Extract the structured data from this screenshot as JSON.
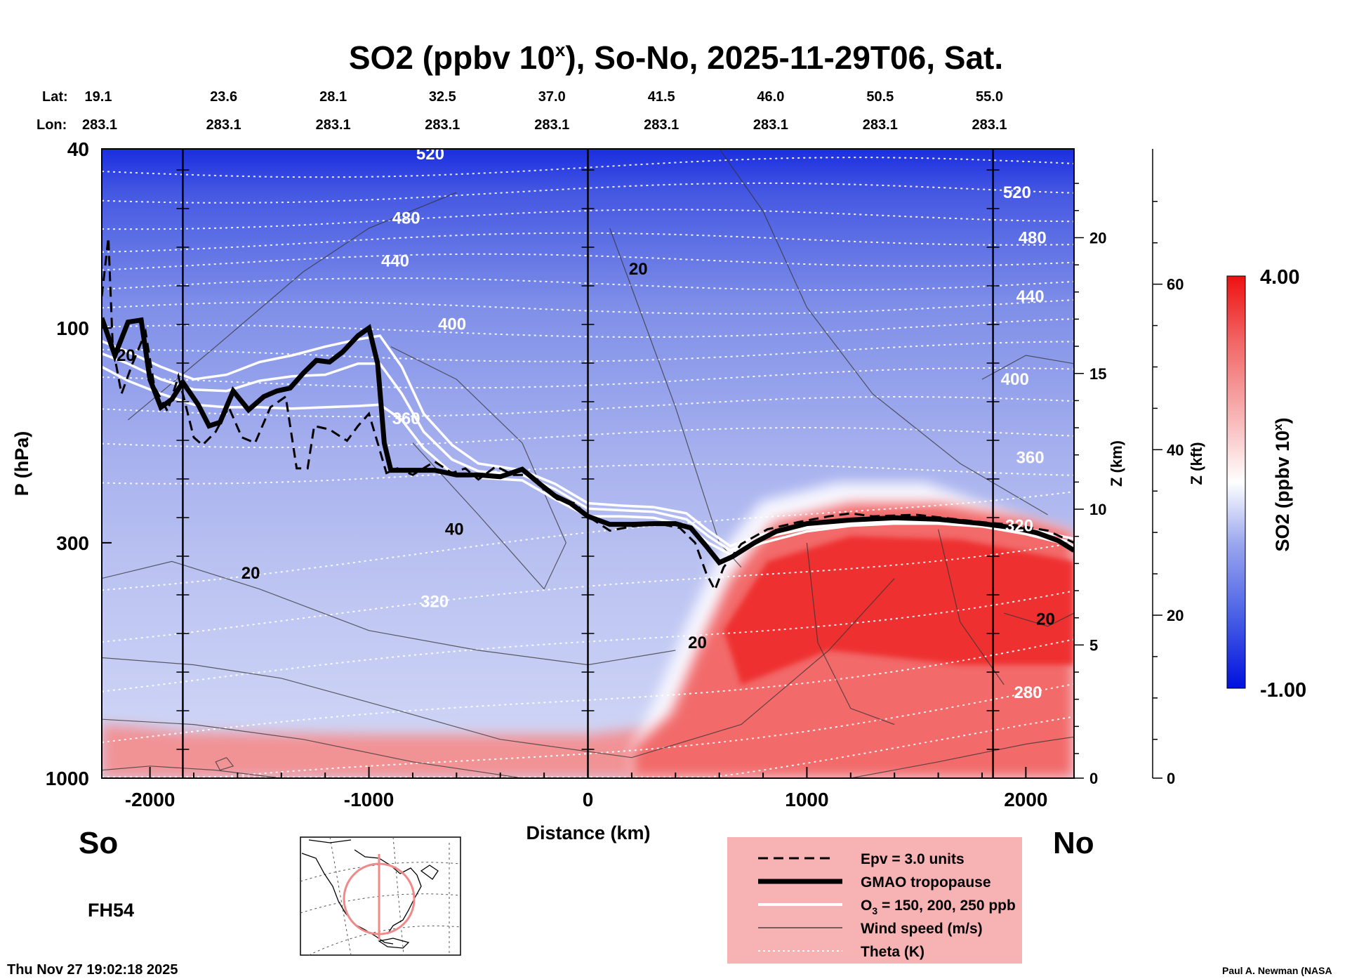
{
  "chart_data": {
    "type": "heatmap",
    "title_main": "SO2 (ppbv 10",
    "title_sup": "x",
    "title_rest": "), So-No, 2025-11-29T06, Sat.",
    "xlabel": "Distance (km)",
    "ylabel": "P (hPa)",
    "xlim": [
      -2220,
      2220
    ],
    "ylim": [
      1000,
      40
    ],
    "y_scale": "log",
    "grid": false,
    "x_ticks": [
      -2000,
      -1000,
      0,
      1000,
      2000
    ],
    "x_tick_labels": [
      "-2000",
      "-1000",
      "0",
      "1000",
      "2000"
    ],
    "y_ticks": [
      40,
      100,
      300,
      1000
    ],
    "y_tick_labels": [
      "40",
      "100",
      "300",
      "1000"
    ],
    "z_km_label": "Z (km)",
    "z_km_ticks": [
      0,
      5,
      10,
      15,
      20
    ],
    "z_km_tick_labels": [
      "0",
      "5",
      "10",
      "15",
      "20"
    ],
    "z_kft_label": "Z (kft)",
    "z_kft_ticks": [
      0,
      20,
      40,
      60
    ],
    "z_kft_tick_labels": [
      "0",
      "20",
      "40",
      "60"
    ],
    "lat_label": "Lat:",
    "lon_label": "Lon:",
    "locations": [
      {
        "x": -2220,
        "lat": "19.1",
        "lon": "283.1"
      },
      {
        "x": -1721,
        "lat": "23.6",
        "lon": "283.1"
      },
      {
        "x": -1221,
        "lat": "28.1",
        "lon": "283.1"
      },
      {
        "x": -722,
        "lat": "32.5",
        "lon": "283.1"
      },
      {
        "x": -222,
        "lat": "37.0",
        "lon": "283.1"
      },
      {
        "x": 278,
        "lat": "41.5",
        "lon": "283.1"
      },
      {
        "x": 777,
        "lat": "46.0",
        "lon": "283.1"
      },
      {
        "x": 1277,
        "lat": "50.5",
        "lon": "283.1"
      },
      {
        "x": 1776,
        "lat": "55.0",
        "lon": "283.1"
      }
    ],
    "vertical_lines_x": [
      -1850,
      0,
      1850
    ],
    "colorbar": {
      "max_label": "4.00",
      "min_label": "-1.00",
      "label_main": "SO2 (ppbv 10",
      "label_sup": "x",
      "label_rest": ")",
      "colors": [
        "#0011dd",
        "#4b62e6",
        "#9aa6ee",
        "#ffffff",
        "#f8b4b4",
        "#f26666",
        "#ee1111"
      ]
    },
    "theta_labels": [
      {
        "text": "520",
        "x": -720,
        "p": 41
      },
      {
        "text": "480",
        "x": -830,
        "p": 57
      },
      {
        "text": "440",
        "x": -880,
        "p": 71
      },
      {
        "text": "400",
        "x": -620,
        "p": 98
      },
      {
        "text": "360",
        "x": -830,
        "p": 159
      },
      {
        "text": "320",
        "x": -700,
        "p": 405
      },
      {
        "text": "520",
        "x": 1960,
        "p": 50
      },
      {
        "text": "480",
        "x": 2030,
        "p": 63
      },
      {
        "text": "440",
        "x": 2020,
        "p": 85
      },
      {
        "text": "400",
        "x": 1950,
        "p": 130
      },
      {
        "text": "360",
        "x": 2020,
        "p": 194
      },
      {
        "text": "320",
        "x": 1970,
        "p": 275
      },
      {
        "text": "280",
        "x": 2010,
        "p": 645
      }
    ],
    "wind_labels": [
      {
        "text": "20",
        "x": 230,
        "p": 74
      },
      {
        "text": "40",
        "x": -610,
        "p": 280
      },
      {
        "text": "20",
        "x": -1540,
        "p": 350
      },
      {
        "text": "20",
        "x": -2110,
        "p": 115
      },
      {
        "text": "20",
        "x": 500,
        "p": 500
      },
      {
        "text": "20",
        "x": 2090,
        "p": 443
      }
    ],
    "tropopause_series": [
      {
        "x": -2220,
        "p": 95
      },
      {
        "x": -2160,
        "p": 115
      },
      {
        "x": -2100,
        "p": 97
      },
      {
        "x": -2040,
        "p": 96
      },
      {
        "x": -2000,
        "p": 130
      },
      {
        "x": -1950,
        "p": 150
      },
      {
        "x": -1900,
        "p": 144
      },
      {
        "x": -1850,
        "p": 132
      },
      {
        "x": -1780,
        "p": 148
      },
      {
        "x": -1730,
        "p": 165
      },
      {
        "x": -1680,
        "p": 162
      },
      {
        "x": -1620,
        "p": 138
      },
      {
        "x": -1550,
        "p": 152
      },
      {
        "x": -1480,
        "p": 142
      },
      {
        "x": -1420,
        "p": 138
      },
      {
        "x": -1360,
        "p": 136
      },
      {
        "x": -1300,
        "p": 126
      },
      {
        "x": -1240,
        "p": 118
      },
      {
        "x": -1180,
        "p": 119
      },
      {
        "x": -1120,
        "p": 113
      },
      {
        "x": -1050,
        "p": 104
      },
      {
        "x": -1000,
        "p": 100
      },
      {
        "x": -960,
        "p": 120
      },
      {
        "x": -930,
        "p": 180
      },
      {
        "x": -900,
        "p": 207
      },
      {
        "x": -800,
        "p": 207
      },
      {
        "x": -700,
        "p": 207
      },
      {
        "x": -600,
        "p": 212
      },
      {
        "x": -500,
        "p": 212
      },
      {
        "x": -400,
        "p": 214
      },
      {
        "x": -300,
        "p": 206
      },
      {
        "x": -220,
        "p": 222
      },
      {
        "x": -150,
        "p": 236
      },
      {
        "x": -80,
        "p": 245
      },
      {
        "x": 0,
        "p": 262
      },
      {
        "x": 100,
        "p": 273
      },
      {
        "x": 200,
        "p": 273
      },
      {
        "x": 300,
        "p": 272
      },
      {
        "x": 400,
        "p": 272
      },
      {
        "x": 470,
        "p": 278
      },
      {
        "x": 540,
        "p": 305
      },
      {
        "x": 600,
        "p": 332
      },
      {
        "x": 660,
        "p": 322
      },
      {
        "x": 760,
        "p": 300
      },
      {
        "x": 860,
        "p": 283
      },
      {
        "x": 1000,
        "p": 272
      },
      {
        "x": 1200,
        "p": 267
      },
      {
        "x": 1400,
        "p": 264
      },
      {
        "x": 1600,
        "p": 266
      },
      {
        "x": 1800,
        "p": 272
      },
      {
        "x": 1950,
        "p": 278
      },
      {
        "x": 2050,
        "p": 285
      },
      {
        "x": 2150,
        "p": 297
      },
      {
        "x": 2220,
        "p": 312
      }
    ],
    "epv_series": [
      {
        "x": -2220,
        "p": 85
      },
      {
        "x": -2190,
        "p": 63
      },
      {
        "x": -2170,
        "p": 110
      },
      {
        "x": -2130,
        "p": 140
      },
      {
        "x": -2080,
        "p": 120
      },
      {
        "x": -2020,
        "p": 102
      },
      {
        "x": -1980,
        "p": 135
      },
      {
        "x": -1920,
        "p": 153
      },
      {
        "x": -1870,
        "p": 128
      },
      {
        "x": -1800,
        "p": 175
      },
      {
        "x": -1760,
        "p": 182
      },
      {
        "x": -1700,
        "p": 170
      },
      {
        "x": -1640,
        "p": 150
      },
      {
        "x": -1580,
        "p": 175
      },
      {
        "x": -1520,
        "p": 180
      },
      {
        "x": -1450,
        "p": 150
      },
      {
        "x": -1380,
        "p": 142
      },
      {
        "x": -1330,
        "p": 205
      },
      {
        "x": -1280,
        "p": 205
      },
      {
        "x": -1250,
        "p": 165
      },
      {
        "x": -1180,
        "p": 168
      },
      {
        "x": -1100,
        "p": 178
      },
      {
        "x": -1050,
        "p": 165
      },
      {
        "x": -1000,
        "p": 155
      },
      {
        "x": -960,
        "p": 180
      },
      {
        "x": -920,
        "p": 210
      },
      {
        "x": -870,
        "p": 205
      },
      {
        "x": -800,
        "p": 212
      },
      {
        "x": -700,
        "p": 198
      },
      {
        "x": -620,
        "p": 210
      },
      {
        "x": -560,
        "p": 205
      },
      {
        "x": -500,
        "p": 217
      },
      {
        "x": -420,
        "p": 203
      },
      {
        "x": -340,
        "p": 212
      },
      {
        "x": -260,
        "p": 212
      },
      {
        "x": -200,
        "p": 228
      },
      {
        "x": -140,
        "p": 240
      },
      {
        "x": -60,
        "p": 245
      },
      {
        "x": 0,
        "p": 262
      },
      {
        "x": 100,
        "p": 282
      },
      {
        "x": 200,
        "p": 276
      },
      {
        "x": 320,
        "p": 272
      },
      {
        "x": 420,
        "p": 278
      },
      {
        "x": 490,
        "p": 300
      },
      {
        "x": 540,
        "p": 350
      },
      {
        "x": 580,
        "p": 382
      },
      {
        "x": 620,
        "p": 340
      },
      {
        "x": 700,
        "p": 302
      },
      {
        "x": 820,
        "p": 280
      },
      {
        "x": 960,
        "p": 270
      },
      {
        "x": 1100,
        "p": 262
      },
      {
        "x": 1200,
        "p": 258
      },
      {
        "x": 1300,
        "p": 262
      },
      {
        "x": 1500,
        "p": 260
      },
      {
        "x": 1650,
        "p": 265
      },
      {
        "x": 1800,
        "p": 270
      },
      {
        "x": 1950,
        "p": 274
      },
      {
        "x": 2100,
        "p": 282
      },
      {
        "x": 2220,
        "p": 300
      }
    ],
    "o3_series": [
      {
        "name": "O3 150 ppb",
        "points": [
          {
            "x": -2220,
            "p": 122
          },
          {
            "x": -2100,
            "p": 131
          },
          {
            "x": -1950,
            "p": 140
          },
          {
            "x": -1800,
            "p": 148
          },
          {
            "x": -1650,
            "p": 150
          },
          {
            "x": -1500,
            "p": 150
          },
          {
            "x": -1350,
            "p": 151
          },
          {
            "x": -1200,
            "p": 150
          },
          {
            "x": -1050,
            "p": 149
          },
          {
            "x": -950,
            "p": 148
          },
          {
            "x": -850,
            "p": 160
          },
          {
            "x": -750,
            "p": 185
          },
          {
            "x": -620,
            "p": 210
          },
          {
            "x": -500,
            "p": 215
          },
          {
            "x": -300,
            "p": 218
          },
          {
            "x": -150,
            "p": 240
          },
          {
            "x": 0,
            "p": 262
          },
          {
            "x": 150,
            "p": 262
          },
          {
            "x": 300,
            "p": 264
          },
          {
            "x": 450,
            "p": 275
          },
          {
            "x": 550,
            "p": 300
          },
          {
            "x": 650,
            "p": 318
          },
          {
            "x": 800,
            "p": 300
          },
          {
            "x": 1000,
            "p": 283
          },
          {
            "x": 1200,
            "p": 275
          },
          {
            "x": 1400,
            "p": 272
          },
          {
            "x": 1600,
            "p": 272
          },
          {
            "x": 1800,
            "p": 276
          },
          {
            "x": 2000,
            "p": 287
          },
          {
            "x": 2220,
            "p": 305
          }
        ]
      },
      {
        "name": "O3 200 ppb",
        "points": [
          {
            "x": -2220,
            "p": 114
          },
          {
            "x": -2100,
            "p": 120
          },
          {
            "x": -1950,
            "p": 130
          },
          {
            "x": -1800,
            "p": 137
          },
          {
            "x": -1650,
            "p": 138
          },
          {
            "x": -1500,
            "p": 131
          },
          {
            "x": -1350,
            "p": 128
          },
          {
            "x": -1200,
            "p": 127
          },
          {
            "x": -1050,
            "p": 120
          },
          {
            "x": -950,
            "p": 120
          },
          {
            "x": -850,
            "p": 140
          },
          {
            "x": -750,
            "p": 170
          },
          {
            "x": -620,
            "p": 196
          },
          {
            "x": -500,
            "p": 208
          },
          {
            "x": -300,
            "p": 212
          },
          {
            "x": -150,
            "p": 228
          },
          {
            "x": 0,
            "p": 252
          },
          {
            "x": 150,
            "p": 254
          },
          {
            "x": 300,
            "p": 256
          },
          {
            "x": 450,
            "p": 266
          },
          {
            "x": 550,
            "p": 290
          },
          {
            "x": 650,
            "p": 312
          },
          {
            "x": 800,
            "p": 292
          },
          {
            "x": 1000,
            "p": 279
          },
          {
            "x": 1200,
            "p": 272
          },
          {
            "x": 1400,
            "p": 270
          },
          {
            "x": 1600,
            "p": 270
          },
          {
            "x": 1800,
            "p": 273
          },
          {
            "x": 2000,
            "p": 283
          },
          {
            "x": 2220,
            "p": 300
          }
        ]
      },
      {
        "name": "O3 250 ppb",
        "points": [
          {
            "x": -2220,
            "p": 107
          },
          {
            "x": -2100,
            "p": 113
          },
          {
            "x": -1950,
            "p": 122
          },
          {
            "x": -1800,
            "p": 130
          },
          {
            "x": -1650,
            "p": 127
          },
          {
            "x": -1500,
            "p": 119
          },
          {
            "x": -1350,
            "p": 115
          },
          {
            "x": -1200,
            "p": 110
          },
          {
            "x": -1050,
            "p": 106
          },
          {
            "x": -950,
            "p": 104
          },
          {
            "x": -850,
            "p": 122
          },
          {
            "x": -750,
            "p": 155
          },
          {
            "x": -620,
            "p": 182
          },
          {
            "x": -500,
            "p": 200
          },
          {
            "x": -300,
            "p": 207
          },
          {
            "x": -150,
            "p": 222
          },
          {
            "x": 0,
            "p": 245
          },
          {
            "x": 150,
            "p": 248
          },
          {
            "x": 300,
            "p": 250
          },
          {
            "x": 450,
            "p": 258
          },
          {
            "x": 550,
            "p": 282
          },
          {
            "x": 650,
            "p": 305
          },
          {
            "x": 800,
            "p": 287
          },
          {
            "x": 1000,
            "p": 276
          },
          {
            "x": 1200,
            "p": 270
          },
          {
            "x": 1400,
            "p": 267
          },
          {
            "x": 1600,
            "p": 268
          },
          {
            "x": 1800,
            "p": 271
          },
          {
            "x": 2000,
            "p": 279
          },
          {
            "x": 2220,
            "p": 294
          }
        ]
      }
    ],
    "so2_field": {
      "background_layers": [
        {
          "p_top": 40,
          "p_bottom": 55,
          "value": 0.0
        },
        {
          "p_top": 55,
          "p_bottom": 120,
          "value": 0.2
        },
        {
          "p_top": 120,
          "p_bottom": 300,
          "value": 0.35
        },
        {
          "p_top": 300,
          "p_bottom": 700,
          "value": 0.45
        },
        {
          "p_top": 700,
          "p_bottom": 1000,
          "value": 0.55
        }
      ],
      "plume_boundary": [
        {
          "x": 380,
          "p": 720
        },
        {
          "x": 500,
          "p": 520
        },
        {
          "x": 650,
          "p": 360
        },
        {
          "x": 850,
          "p": 270
        },
        {
          "x": 1200,
          "p": 245
        },
        {
          "x": 1600,
          "p": 245
        },
        {
          "x": 2000,
          "p": 265
        },
        {
          "x": 2220,
          "p": 285
        },
        {
          "x": 2220,
          "p": 1000
        },
        {
          "x": 200,
          "p": 1000
        },
        {
          "x": 200,
          "p": 860
        }
      ],
      "plume_core": [
        {
          "x": 620,
          "p": 470
        },
        {
          "x": 820,
          "p": 330
        },
        {
          "x": 1200,
          "p": 290
        },
        {
          "x": 1700,
          "p": 295
        },
        {
          "x": 2220,
          "p": 330
        },
        {
          "x": 2220,
          "p": 560
        },
        {
          "x": 1700,
          "p": 560
        },
        {
          "x": 1100,
          "p": 520
        },
        {
          "x": 700,
          "p": 620
        }
      ],
      "surface_band": [
        {
          "x": -2220,
          "p": 760
        },
        {
          "x": -2050,
          "p": 770
        },
        {
          "x": -1850,
          "p": 790
        },
        {
          "x": -1000,
          "p": 800
        },
        {
          "x": 0,
          "p": 800
        },
        {
          "x": 400,
          "p": 760
        },
        {
          "x": 400,
          "p": 1000
        },
        {
          "x": -2220,
          "p": 1000
        }
      ]
    },
    "legend": [
      {
        "label": "Epv = 3.0 units"
      },
      {
        "label": "GMAO tropopause"
      },
      {
        "label_main": "O",
        "label_sub": "3",
        "label_rest": " = 150, 200, 250 ppb"
      },
      {
        "label": "Wind speed (m/s)"
      },
      {
        "label": "Theta (K)"
      }
    ],
    "south_label": "So",
    "north_label": "No",
    "forecast_hour": "FH54",
    "timestamp": "Thu Nov 27 19:02:18 2025",
    "credit": "Paul A. Newman (NASA"
  }
}
